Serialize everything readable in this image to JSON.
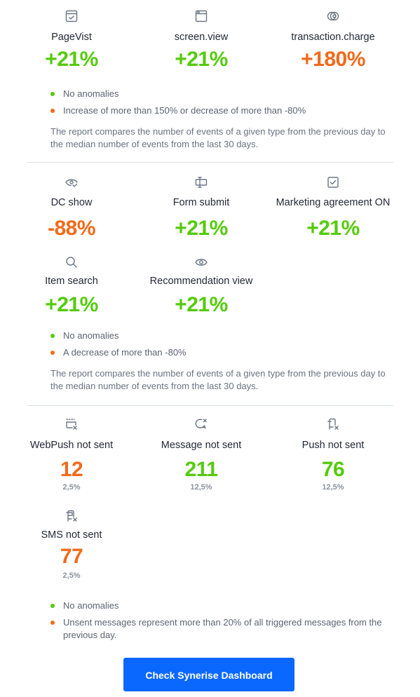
{
  "colors": {
    "green": "#54cb0b",
    "orange": "#f26a1b",
    "button": "#0b68ff"
  },
  "section1": {
    "metrics": [
      {
        "icon": "browser-check-icon",
        "label": "PageVist",
        "value": "+21%",
        "status": "green"
      },
      {
        "icon": "browser-window-icon",
        "label": "screen.view",
        "value": "+21%",
        "status": "green"
      },
      {
        "icon": "coins-icon",
        "label": "transaction.charge",
        "value": "+180%",
        "status": "orange"
      }
    ],
    "legend": [
      {
        "text": "No anomalies",
        "status": "green"
      },
      {
        "text": "Increase of more than 150% or decrease of more than -80%",
        "status": "orange"
      }
    ],
    "note": "The report compares the number of events of a given type from the previous day to the median number of events from the last 30 days."
  },
  "section2": {
    "metrics": [
      {
        "icon": "eye-check-icon",
        "label": "DC show",
        "value": "-88%",
        "status": "orange"
      },
      {
        "icon": "form-input-icon",
        "label": "Form submit",
        "value": "+21%",
        "status": "green"
      },
      {
        "icon": "checkbox-icon",
        "label": "Marketing agreement ON",
        "value": "+21%",
        "status": "green"
      },
      {
        "icon": "search-icon",
        "label": "Item search",
        "value": "+21%",
        "status": "green"
      },
      {
        "icon": "eye-icon",
        "label": "Recommendation view",
        "value": "+21%",
        "status": "green"
      }
    ],
    "legend": [
      {
        "text": "No anomalies",
        "status": "green"
      },
      {
        "text": "A decrease of more than -80%",
        "status": "orange"
      }
    ],
    "note": "The report compares the number of events of a given type from the previous day to the median number of events from the last 30 days."
  },
  "section3": {
    "metrics": [
      {
        "icon": "webpush-x-icon",
        "label": "WebPush not sent",
        "value": "12",
        "sub": "2,5%",
        "status": "orange"
      },
      {
        "icon": "message-x-icon",
        "label": "Message not sent",
        "value": "211",
        "sub": "12,5%",
        "status": "green"
      },
      {
        "icon": "push-x-icon",
        "label": "Push not sent",
        "value": "76",
        "sub": "12,5%",
        "status": "green"
      },
      {
        "icon": "sms-x-icon",
        "label": "SMS not sent",
        "value": "77",
        "sub": "2,5%",
        "status": "orange"
      }
    ],
    "legend": [
      {
        "text": "No anomalies",
        "status": "green"
      },
      {
        "text": "Unsent messages represent more than 20% of all triggered messages from the previous day.",
        "status": "orange"
      }
    ]
  },
  "cta": {
    "label": "Check Synerise Dashboard"
  }
}
